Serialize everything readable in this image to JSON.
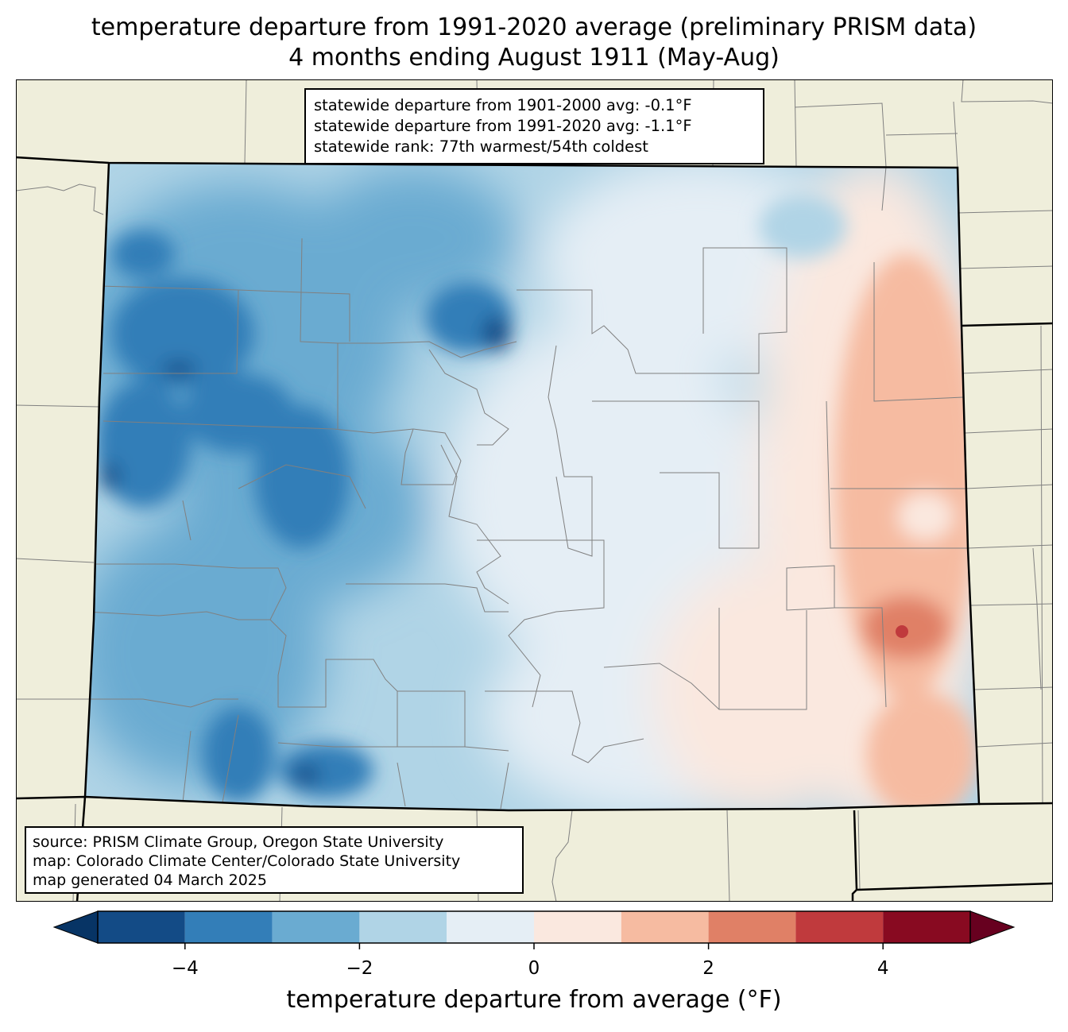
{
  "title": {
    "line1": "temperature departure from 1991-2020 average (preliminary PRISM data)",
    "line2": "4 months ending August 1911 (May-Aug)"
  },
  "stats": {
    "line1": "statewide departure from 1901-2000 avg: -0.1°F",
    "line2": "statewide departure from 1991-2020 avg: -1.1°F",
    "line3": "statewide rank: 77th warmest/54th coldest"
  },
  "source": {
    "line1": "source: PRISM Climate Group, Oregon State University",
    "line2": "map: Colorado Climate Center/Colorado State University",
    "line3": "map generated 04 March 2025"
  },
  "colorbar": {
    "label": "temperature departure from average (°F)",
    "ticks": [
      "−4",
      "−2",
      "0",
      "2",
      "4"
    ],
    "tick_values": [
      -4,
      -2,
      0,
      2,
      4
    ],
    "bounds": [
      -5,
      5
    ],
    "step": 1,
    "colors": [
      "#134b86",
      "#337eb8",
      "#6aabd1",
      "#b0d4e6",
      "#e5eef5",
      "#fae8df",
      "#f6bba1",
      "#e08066",
      "#c03a3d",
      "#880a21"
    ],
    "under_color": "#073465",
    "over_color": "#67001f"
  },
  "colors": {
    "land": "#efeedb",
    "border": "#000000",
    "county_lines": "#808080"
  }
}
